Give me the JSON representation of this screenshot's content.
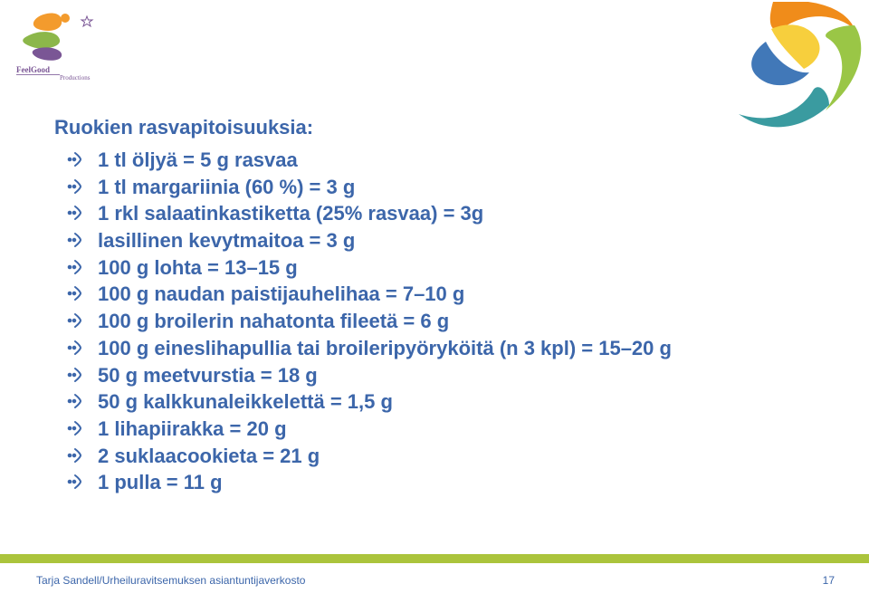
{
  "colors": {
    "headline": "#3c66aa",
    "footer_bar": "#abc43c",
    "logo_orange": "#f39b2d",
    "logo_purple": "#7a5695",
    "logo_green": "#8cb74a",
    "deco_orange": "#f08c1a",
    "deco_teal": "#3a9ba0",
    "deco_yellow": "#f7cf3d",
    "deco_green": "#9ac646",
    "deco_blue": "#4178b8"
  },
  "title": "Ruokien rasvapitoisuuksia:",
  "items": [
    "1 tl öljyä = 5 g rasvaa",
    "1 tl margariinia (60 %) = 3 g",
    "1 rkl salaatinkastiketta (25% rasvaa) = 3g",
    "lasillinen kevytmaitoa = 3 g",
    "100 g lohta = 13–15 g",
    "100 g naudan paistijauhelihaa = 7–10 g",
    "100 g broilerin nahatonta fileetä = 6 g",
    "100 g eineslihapullia tai broileripyöryköitä (n 3 kpl) = 15–20 g",
    "50 g meetvurstia = 18 g",
    "50 g kalkkunaleikkelettä = 1,5 g",
    "1 lihapiirakka = 20 g",
    "2 suklaacookieta = 21 g",
    "1 pulla = 11 g"
  ],
  "footer": "Tarja Sandell/Urheiluravitsemuksen asiantuntijaverkosto",
  "page": "17",
  "logo_left_label": "FeelGood Productions"
}
